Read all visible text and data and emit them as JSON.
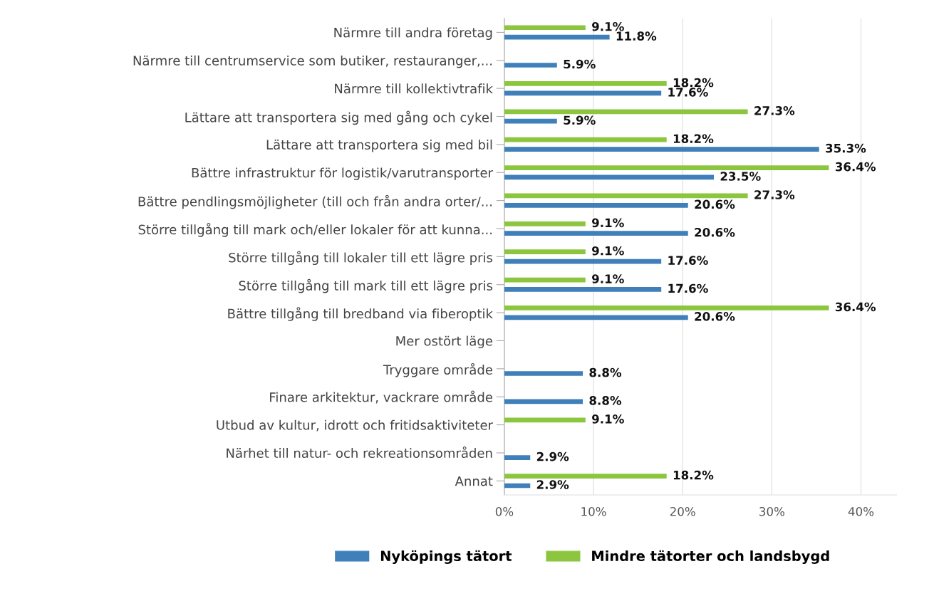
{
  "chart_data": {
    "type": "bar",
    "orientation": "horizontal",
    "categories": [
      "Närmre till andra företag",
      "Närmre till centrumservice som butiker, restauranger,...",
      "Närmre till kollektivtrafik",
      "Lättare att transportera sig med gång och cykel",
      "Lättare att transportera sig med bil",
      "Bättre infrastruktur för logistik/varutransporter",
      "Bättre pendlingsmöjligheter (till och från andra orter/...",
      "Större tillgång till mark och/eller lokaler för att kunna...",
      "Större tillgång till lokaler till ett lägre pris",
      "Större tillgång till mark till ett lägre pris",
      "Bättre tillgång till bredband via fiberoptik",
      "Mer ostört läge",
      "Tryggare område",
      "Finare arkitektur, vackrare område",
      "Utbud av kultur, idrott och fritidsaktiviteter",
      "Närhet till natur- och rekreationsområden",
      "Annat"
    ],
    "series": [
      {
        "name": "Nyköpings tätort",
        "color": "#3f7fba",
        "values": [
          11.8,
          5.9,
          17.6,
          5.9,
          35.3,
          23.5,
          20.6,
          20.6,
          17.6,
          17.6,
          20.6,
          null,
          8.8,
          8.8,
          null,
          2.9,
          2.9
        ],
        "value_labels": [
          "11.8%",
          "5.9%",
          "17.6%",
          "5.9%",
          "35.3%",
          "23.5%",
          "20.6%",
          "20.6%",
          "17.6%",
          "17.6%",
          "20.6%",
          null,
          "8.8%",
          "8.8%",
          null,
          "2.9%",
          "2.9%"
        ]
      },
      {
        "name": "Mindre tätorter och landsbygd",
        "color": "#8cc63f",
        "values": [
          9.1,
          null,
          18.2,
          27.3,
          18.2,
          36.4,
          27.3,
          9.1,
          9.1,
          9.1,
          36.4,
          null,
          null,
          null,
          9.1,
          null,
          18.2
        ],
        "value_labels": [
          "9.1%",
          null,
          "18.2%",
          "27.3%",
          "18.2%",
          "36.4%",
          "27.3%",
          "9.1%",
          "9.1%",
          "9.1%",
          "36.4%",
          null,
          null,
          null,
          "9.1%",
          null,
          "18.2%"
        ]
      }
    ],
    "xlim": [
      0,
      44
    ],
    "xticks": [
      {
        "value": 0,
        "label": "0%"
      },
      {
        "value": 10,
        "label": "10%"
      },
      {
        "value": 20,
        "label": "20%"
      },
      {
        "value": 30,
        "label": "30%"
      },
      {
        "value": 40,
        "label": "40%"
      }
    ],
    "grid": "x",
    "legend": "bottom"
  }
}
